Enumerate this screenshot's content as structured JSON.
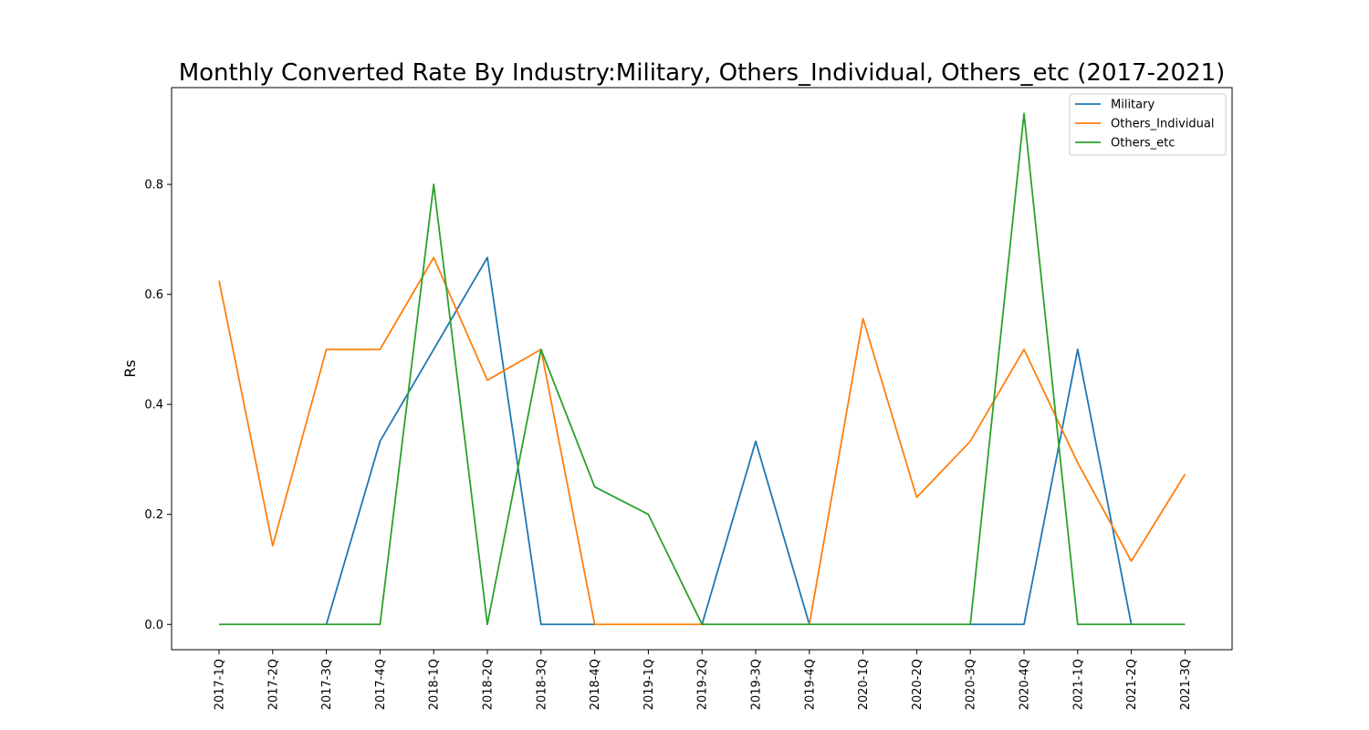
{
  "chart_data": {
    "type": "line",
    "title": "Monthly Converted Rate By Industry:Military, Others_Individual, Others_etc (2017-2021)",
    "xlabel": "",
    "ylabel": "Rs",
    "categories": [
      "2017-1Q",
      "2017-2Q",
      "2017-3Q",
      "2017-4Q",
      "2018-1Q",
      "2018-2Q",
      "2018-3Q",
      "2018-4Q",
      "2019-1Q",
      "2019-2Q",
      "2019-3Q",
      "2019-4Q",
      "2020-1Q",
      "2020-2Q",
      "2020-3Q",
      "2020-4Q",
      "2021-1Q",
      "2021-2Q",
      "2021-3Q"
    ],
    "ylim": [
      -0.046,
      0.976
    ],
    "yticks": [
      0.0,
      0.2,
      0.4,
      0.6,
      0.8
    ],
    "ytick_labels": [
      "0.0",
      "0.2",
      "0.4",
      "0.6",
      "0.8"
    ],
    "grid": false,
    "legend_position": "top-right",
    "series": [
      {
        "name": "Military",
        "color": "#1f77b4",
        "values": [
          null,
          null,
          0.0,
          0.333,
          0.5,
          0.667,
          0.0,
          0.0,
          null,
          0.0,
          0.333,
          0.0,
          null,
          null,
          0.0,
          0.0,
          0.5,
          0.0,
          null
        ]
      },
      {
        "name": "Others_Individual",
        "color": "#ff7f0e",
        "values": [
          0.625,
          0.143,
          0.5,
          0.5,
          0.667,
          0.444,
          0.5,
          0.0,
          0.0,
          0.0,
          null,
          0.0,
          0.556,
          0.231,
          0.333,
          0.5,
          0.294,
          0.115,
          0.273
        ]
      },
      {
        "name": "Others_etc",
        "color": "#2ca02c",
        "values": [
          0.0,
          0.0,
          0.0,
          0.0,
          0.8,
          0.0,
          0.5,
          0.25,
          0.2,
          0.0,
          0.0,
          0.0,
          0.0,
          0.0,
          0.0,
          0.929,
          0.0,
          0.0,
          0.0
        ]
      }
    ]
  }
}
